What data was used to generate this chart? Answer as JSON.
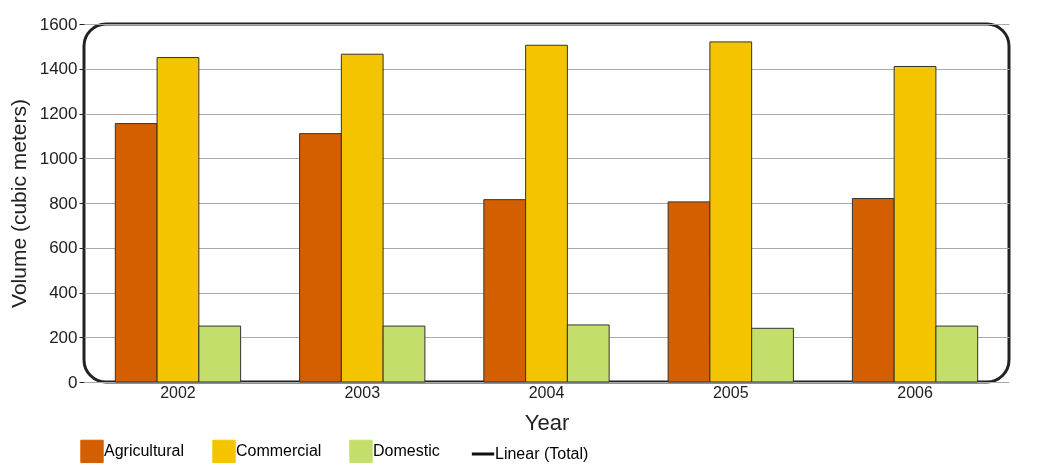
{
  "chart_data": {
    "type": "bar",
    "xlabel": "Year",
    "ylabel": "Volume (cubic meters)",
    "categories": [
      "2002",
      "2003",
      "2004",
      "2005",
      "2006"
    ],
    "series": [
      {
        "name": "Agricultural",
        "color": "#d35f00",
        "values": [
          1155,
          1110,
          815,
          805,
          820
        ]
      },
      {
        "name": "Commercial",
        "color": "#f5c400",
        "values": [
          1450,
          1465,
          1505,
          1520,
          1410
        ]
      },
      {
        "name": "Domestic",
        "color": "#c3de6a",
        "values": [
          250,
          250,
          255,
          240,
          250
        ]
      },
      {
        "name": "Linear (Total)",
        "type": "line",
        "color": "#111111",
        "values": [
          null,
          null,
          null,
          null,
          null
        ]
      }
    ],
    "ylim": [
      0,
      1600
    ],
    "yticks": [
      0,
      200,
      400,
      600,
      800,
      1000,
      1200,
      1400,
      1600
    ],
    "grid": "y",
    "legend": "bottom left"
  }
}
